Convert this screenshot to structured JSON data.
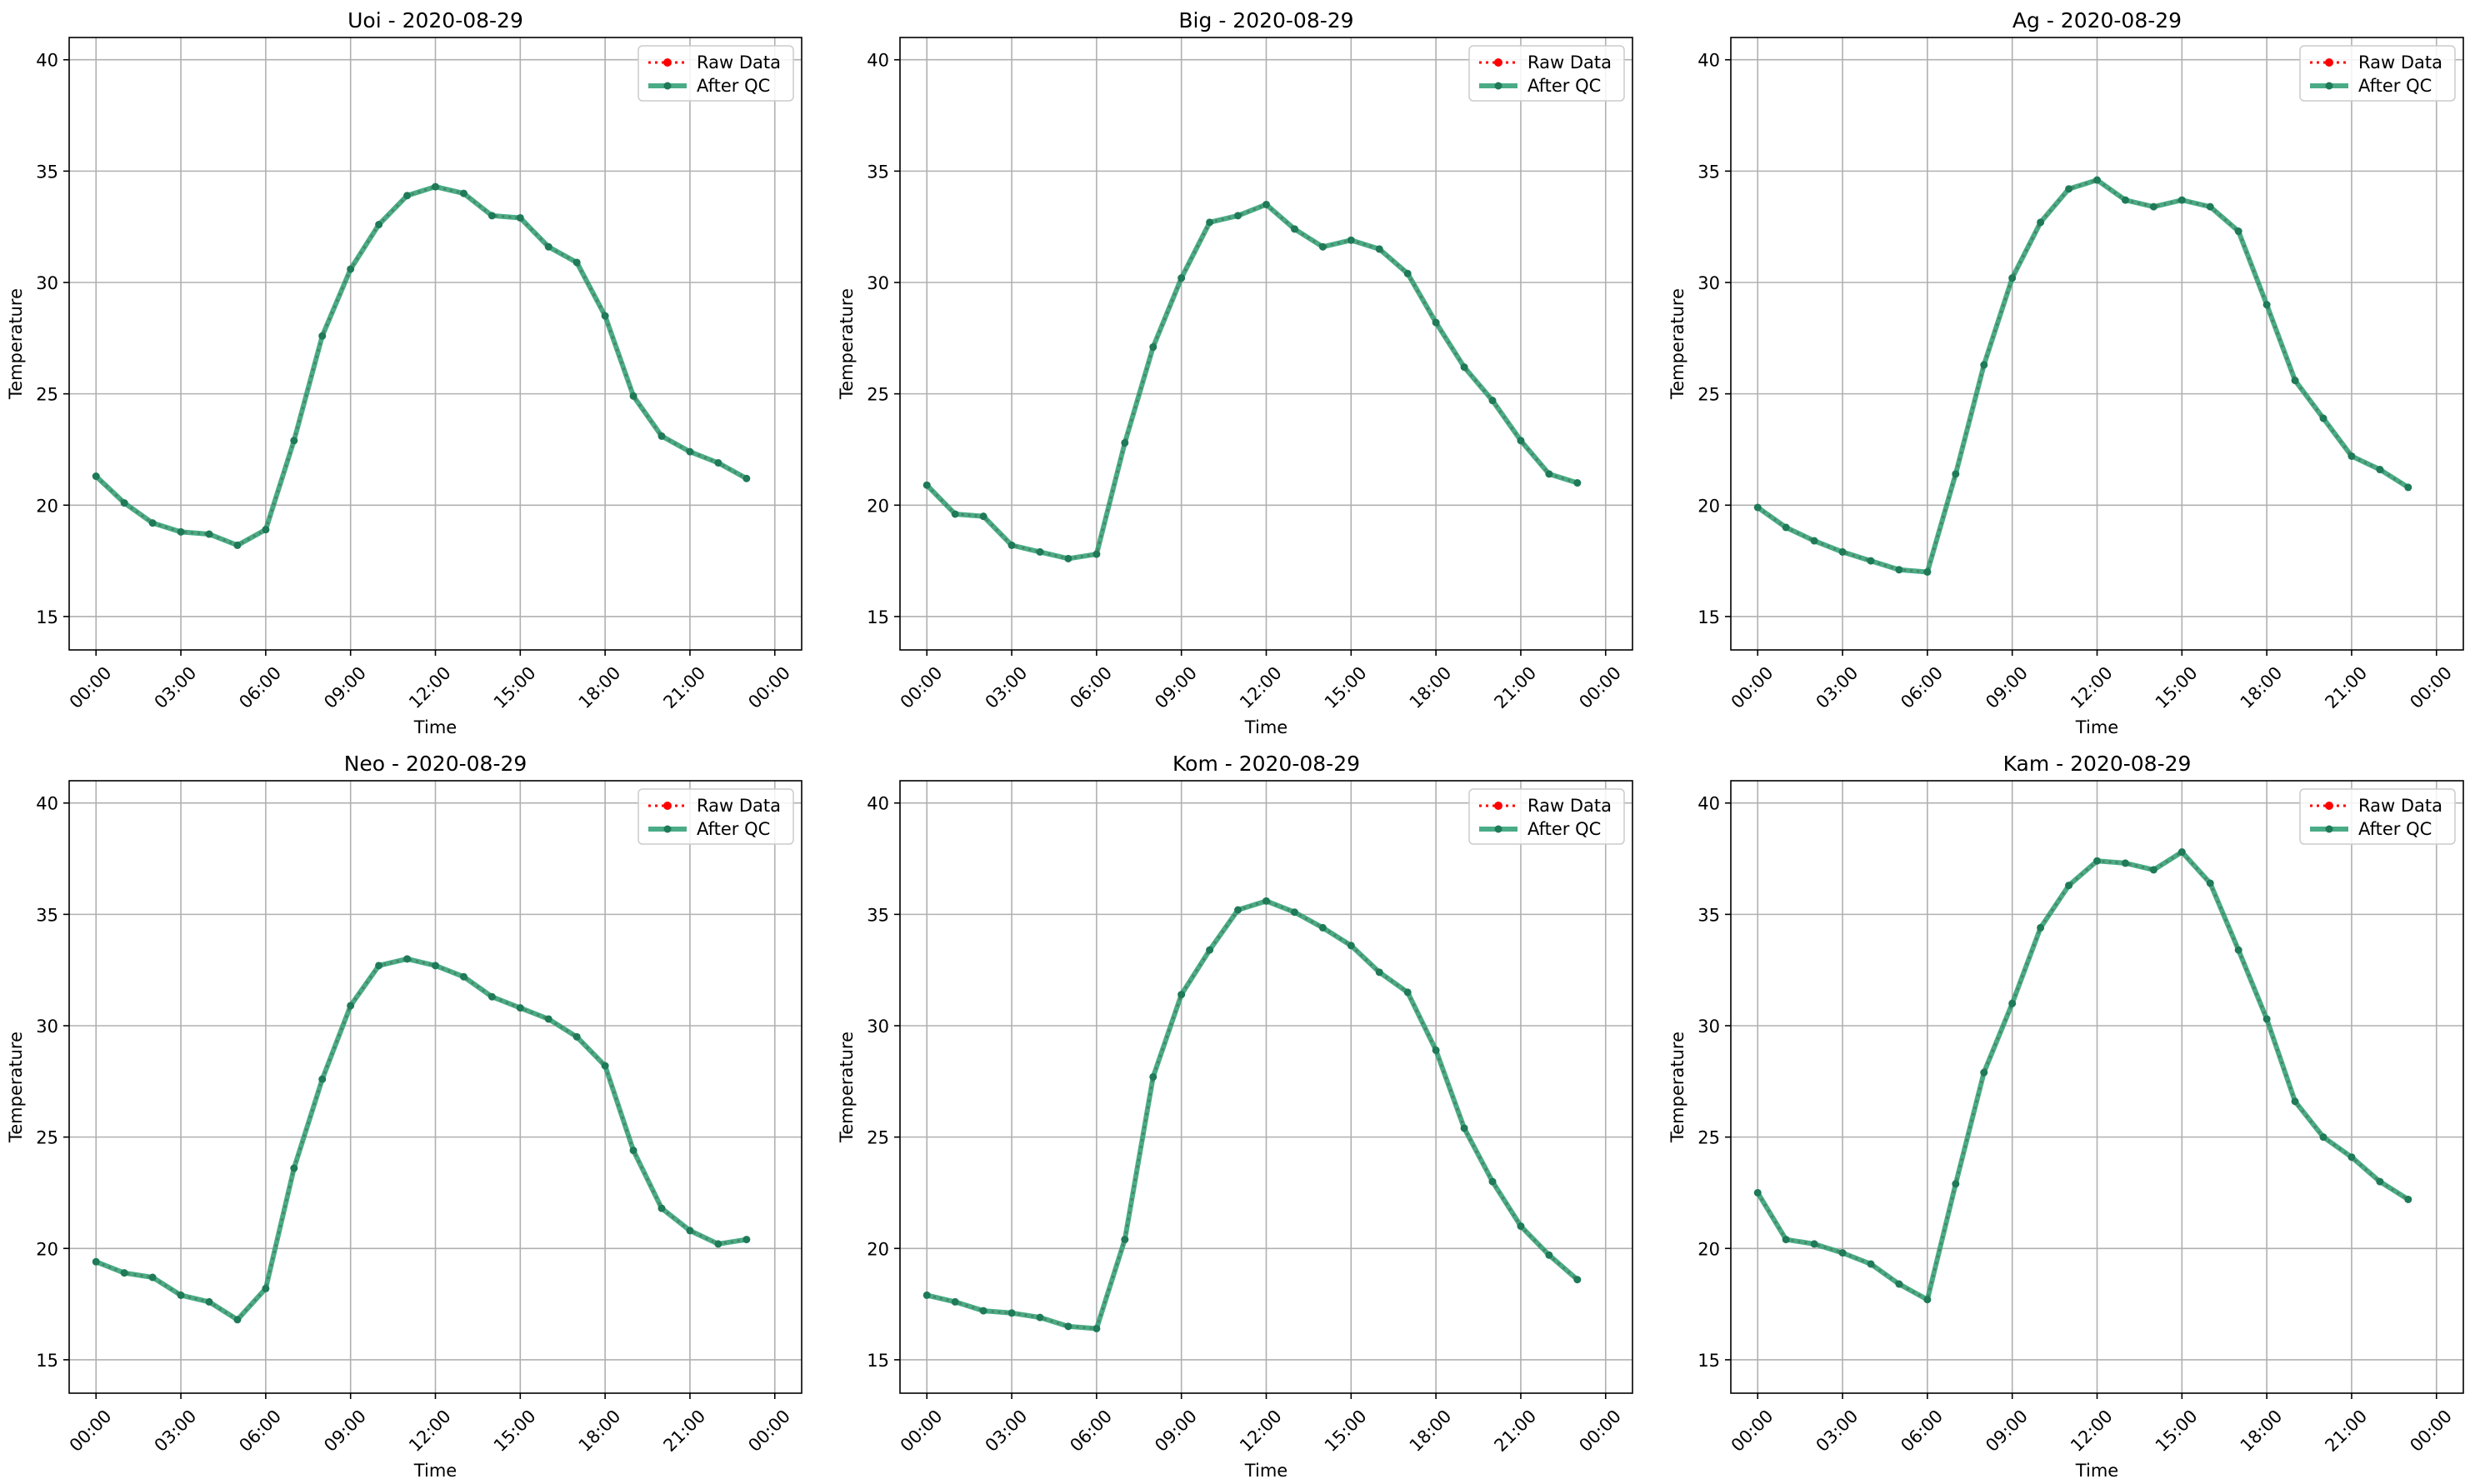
{
  "figure": {
    "legend_labels": {
      "raw": "Raw Data",
      "qc": "After QC"
    }
  },
  "colors": {
    "raw": "#ff0000",
    "qc": "#2a9d72",
    "grid": "#b0b0b0",
    "axis": "#000000"
  },
  "chart_data": [
    {
      "type": "line",
      "title": "Uoi - 2020-08-29",
      "xlabel": "Time",
      "ylabel": "Temperature",
      "x_hours": [
        0,
        1,
        2,
        3,
        4,
        5,
        6,
        7,
        8,
        9,
        10,
        11,
        12,
        13,
        14,
        15,
        16,
        17,
        18,
        19,
        20,
        21,
        22,
        23
      ],
      "xticks": [
        "00:00",
        "03:00",
        "06:00",
        "09:00",
        "12:00",
        "15:00",
        "18:00",
        "21:00",
        "00:00"
      ],
      "yticks": [
        15,
        20,
        25,
        30,
        35,
        40
      ],
      "ylim": [
        13.5,
        41
      ],
      "grid": true,
      "legend": "top-right",
      "series": [
        {
          "name": "Raw Data",
          "values": [
            21.3,
            20.1,
            19.2,
            18.8,
            18.7,
            18.2,
            18.9,
            22.9,
            27.6,
            30.6,
            32.6,
            33.9,
            34.3,
            34.0,
            33.0,
            32.9,
            31.6,
            30.9,
            28.5,
            24.9,
            23.1,
            22.4,
            21.9,
            21.2
          ]
        },
        {
          "name": "After QC",
          "values": [
            21.3,
            20.1,
            19.2,
            18.8,
            18.7,
            18.2,
            18.9,
            22.9,
            27.6,
            30.6,
            32.6,
            33.9,
            34.3,
            34.0,
            33.0,
            32.9,
            31.6,
            30.9,
            28.5,
            24.9,
            23.1,
            22.4,
            21.9,
            21.2
          ]
        }
      ]
    },
    {
      "type": "line",
      "title": "Big - 2020-08-29",
      "xlabel": "Time",
      "ylabel": "Temperature",
      "x_hours": [
        0,
        1,
        2,
        3,
        4,
        5,
        6,
        7,
        8,
        9,
        10,
        11,
        12,
        13,
        14,
        15,
        16,
        17,
        18,
        19,
        20,
        21,
        22,
        23
      ],
      "xticks": [
        "00:00",
        "03:00",
        "06:00",
        "09:00",
        "12:00",
        "15:00",
        "18:00",
        "21:00",
        "00:00"
      ],
      "yticks": [
        15,
        20,
        25,
        30,
        35,
        40
      ],
      "ylim": [
        13.5,
        41
      ],
      "grid": true,
      "legend": "top-right",
      "series": [
        {
          "name": "Raw Data",
          "values": [
            20.9,
            19.6,
            19.5,
            18.2,
            17.9,
            17.6,
            17.8,
            22.8,
            27.1,
            30.2,
            32.7,
            33.0,
            33.5,
            32.4,
            31.6,
            31.9,
            31.5,
            30.4,
            28.2,
            26.2,
            24.7,
            22.9,
            21.4,
            21.0
          ]
        },
        {
          "name": "After QC",
          "values": [
            20.9,
            19.6,
            19.5,
            18.2,
            17.9,
            17.6,
            17.8,
            22.8,
            27.1,
            30.2,
            32.7,
            33.0,
            33.5,
            32.4,
            31.6,
            31.9,
            31.5,
            30.4,
            28.2,
            26.2,
            24.7,
            22.9,
            21.4,
            21.0
          ]
        }
      ]
    },
    {
      "type": "line",
      "title": "Ag - 2020-08-29",
      "xlabel": "Time",
      "ylabel": "Temperature",
      "x_hours": [
        0,
        1,
        2,
        3,
        4,
        5,
        6,
        7,
        8,
        9,
        10,
        11,
        12,
        13,
        14,
        15,
        16,
        17,
        18,
        19,
        20,
        21,
        22,
        23
      ],
      "xticks": [
        "00:00",
        "03:00",
        "06:00",
        "09:00",
        "12:00",
        "15:00",
        "18:00",
        "21:00",
        "00:00"
      ],
      "yticks": [
        15,
        20,
        25,
        30,
        35,
        40
      ],
      "ylim": [
        13.5,
        41
      ],
      "grid": true,
      "legend": "top-right",
      "series": [
        {
          "name": "Raw Data",
          "values": [
            19.9,
            19.0,
            18.4,
            17.9,
            17.5,
            17.1,
            17.0,
            21.4,
            26.3,
            30.2,
            32.7,
            34.2,
            34.6,
            33.7,
            33.4,
            33.7,
            33.4,
            32.3,
            29.0,
            25.6,
            23.9,
            22.2,
            21.6,
            20.8
          ]
        },
        {
          "name": "After QC",
          "values": [
            19.9,
            19.0,
            18.4,
            17.9,
            17.5,
            17.1,
            17.0,
            21.4,
            26.3,
            30.2,
            32.7,
            34.2,
            34.6,
            33.7,
            33.4,
            33.7,
            33.4,
            32.3,
            29.0,
            25.6,
            23.9,
            22.2,
            21.6,
            20.8
          ]
        }
      ]
    },
    {
      "type": "line",
      "title": "Neo - 2020-08-29",
      "xlabel": "Time",
      "ylabel": "Temperature",
      "x_hours": [
        0,
        1,
        2,
        3,
        4,
        5,
        6,
        7,
        8,
        9,
        10,
        11,
        12,
        13,
        14,
        15,
        16,
        17,
        18,
        19,
        20,
        21,
        22,
        23
      ],
      "xticks": [
        "00:00",
        "03:00",
        "06:00",
        "09:00",
        "12:00",
        "15:00",
        "18:00",
        "21:00",
        "00:00"
      ],
      "yticks": [
        15,
        20,
        25,
        30,
        35,
        40
      ],
      "ylim": [
        13.5,
        41
      ],
      "grid": true,
      "legend": "top-right",
      "series": [
        {
          "name": "Raw Data",
          "values": [
            19.4,
            18.9,
            18.7,
            17.9,
            17.6,
            16.8,
            18.2,
            23.6,
            27.6,
            30.9,
            32.7,
            33.0,
            32.7,
            32.2,
            31.3,
            30.8,
            30.3,
            29.5,
            28.2,
            24.4,
            21.8,
            20.8,
            20.2,
            20.4
          ]
        },
        {
          "name": "After QC",
          "values": [
            19.4,
            18.9,
            18.7,
            17.9,
            17.6,
            16.8,
            18.2,
            23.6,
            27.6,
            30.9,
            32.7,
            33.0,
            32.7,
            32.2,
            31.3,
            30.8,
            30.3,
            29.5,
            28.2,
            24.4,
            21.8,
            20.8,
            20.2,
            20.4
          ]
        }
      ]
    },
    {
      "type": "line",
      "title": "Kom - 2020-08-29",
      "xlabel": "Time",
      "ylabel": "Temperature",
      "x_hours": [
        0,
        1,
        2,
        3,
        4,
        5,
        6,
        7,
        8,
        9,
        10,
        11,
        12,
        13,
        14,
        15,
        16,
        17,
        18,
        19,
        20,
        21,
        22,
        23
      ],
      "xticks": [
        "00:00",
        "03:00",
        "06:00",
        "09:00",
        "12:00",
        "15:00",
        "18:00",
        "21:00",
        "00:00"
      ],
      "yticks": [
        15,
        20,
        25,
        30,
        35,
        40
      ],
      "ylim": [
        13.5,
        41
      ],
      "grid": true,
      "legend": "top-right",
      "series": [
        {
          "name": "Raw Data",
          "values": [
            17.9,
            17.6,
            17.2,
            17.1,
            16.9,
            16.5,
            16.4,
            20.4,
            27.7,
            31.4,
            33.4,
            35.2,
            35.6,
            35.1,
            34.4,
            33.6,
            32.4,
            31.5,
            28.9,
            25.4,
            23.0,
            21.0,
            19.7,
            18.6
          ]
        },
        {
          "name": "After QC",
          "values": [
            17.9,
            17.6,
            17.2,
            17.1,
            16.9,
            16.5,
            16.4,
            20.4,
            27.7,
            31.4,
            33.4,
            35.2,
            35.6,
            35.1,
            34.4,
            33.6,
            32.4,
            31.5,
            28.9,
            25.4,
            23.0,
            21.0,
            19.7,
            18.6
          ]
        }
      ]
    },
    {
      "type": "line",
      "title": "Kam - 2020-08-29",
      "xlabel": "Time",
      "ylabel": "Temperature",
      "x_hours": [
        0,
        1,
        2,
        3,
        4,
        5,
        6,
        7,
        8,
        9,
        10,
        11,
        12,
        13,
        14,
        15,
        16,
        17,
        18,
        19,
        20,
        21,
        22,
        23
      ],
      "xticks": [
        "00:00",
        "03:00",
        "06:00",
        "09:00",
        "12:00",
        "15:00",
        "18:00",
        "21:00",
        "00:00"
      ],
      "yticks": [
        15,
        20,
        25,
        30,
        35,
        40
      ],
      "ylim": [
        13.5,
        41
      ],
      "grid": true,
      "legend": "top-right",
      "series": [
        {
          "name": "Raw Data",
          "values": [
            22.5,
            20.4,
            20.2,
            19.8,
            19.3,
            18.4,
            17.7,
            22.9,
            27.9,
            31.0,
            34.4,
            36.3,
            37.4,
            37.3,
            37.0,
            37.8,
            36.4,
            33.4,
            30.3,
            26.6,
            25.0,
            24.1,
            23.0,
            22.2
          ]
        },
        {
          "name": "After QC",
          "values": [
            22.5,
            20.4,
            20.2,
            19.8,
            19.3,
            18.4,
            17.7,
            22.9,
            27.9,
            31.0,
            34.4,
            36.3,
            37.4,
            37.3,
            37.0,
            37.8,
            36.4,
            33.4,
            30.3,
            26.6,
            25.0,
            24.1,
            23.0,
            22.2
          ]
        }
      ]
    }
  ]
}
